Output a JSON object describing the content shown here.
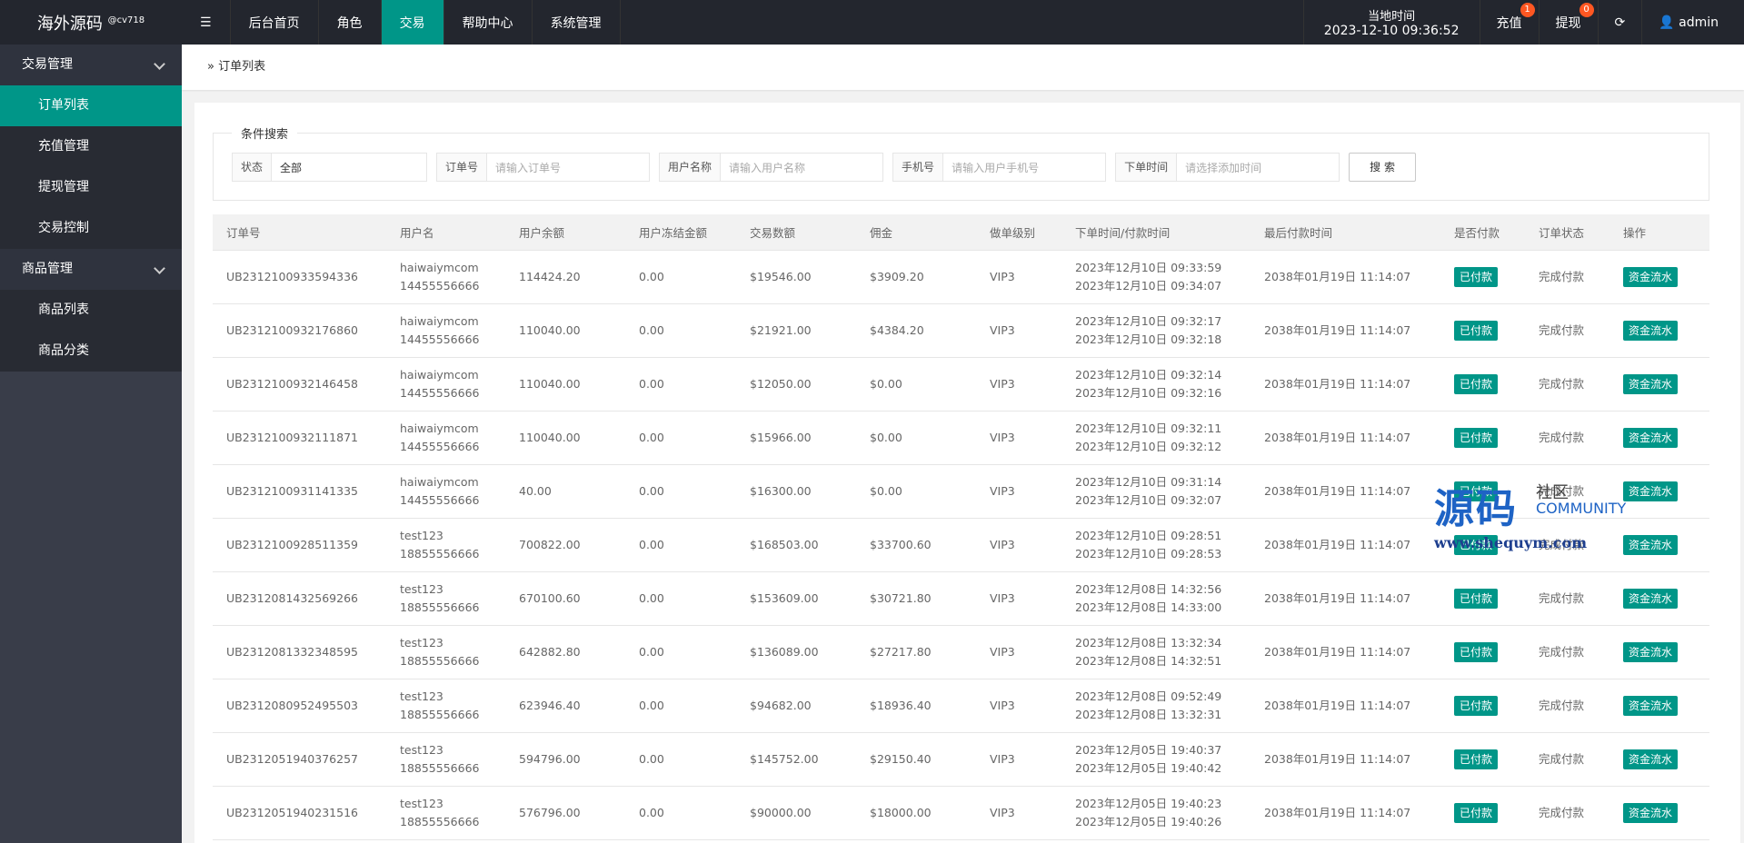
{
  "header": {
    "logo": "海外源码",
    "logo_tag": "@cv718",
    "nav": [
      "后台首页",
      "角色",
      "交易",
      "帮助中心",
      "系统管理"
    ],
    "time_label": "当地时间",
    "time": "2023-12-10 09:36:52",
    "recharge": "充值",
    "recharge_badge": "1",
    "withdraw": "提现",
    "withdraw_badge": "0",
    "user": "admin"
  },
  "sidebar": {
    "groups": [
      {
        "title": "交易管理",
        "items": [
          "订单列表",
          "充值管理",
          "提现管理",
          "交易控制"
        ]
      },
      {
        "title": "商品管理",
        "items": [
          "商品列表",
          "商品分类"
        ]
      }
    ]
  },
  "breadcrumb": "订单列表",
  "search": {
    "legend": "条件搜索",
    "fields": [
      {
        "label": "状态",
        "value": "全部"
      },
      {
        "label": "订单号",
        "placeholder": "请输入订单号"
      },
      {
        "label": "用户名称",
        "placeholder": "请输入用户名称"
      },
      {
        "label": "手机号",
        "placeholder": "请输入用户手机号"
      },
      {
        "label": "下单时间",
        "placeholder": "请选择添加时间"
      }
    ],
    "button": "搜 索"
  },
  "table": {
    "columns": [
      "订单号",
      "用户名",
      "用户余额",
      "用户冻结金额",
      "交易数额",
      "佣金",
      "做单级别",
      "下单时间/付款时间",
      "最后付款时间",
      "是否付款",
      "订单状态",
      "操作"
    ],
    "rows": [
      [
        "UB2312100933594336",
        "haiwaiymcom",
        "14455556666",
        "114424.20",
        "0.00",
        "$19546.00",
        "$3909.20",
        "VIP3",
        "2023年12月10日 09:33:59",
        "2023年12月10日 09:34:07",
        "2038年01月19日 11:14:07",
        "已付款",
        "完成付款",
        "资金流水"
      ],
      [
        "UB2312100932176860",
        "haiwaiymcom",
        "14455556666",
        "110040.00",
        "0.00",
        "$21921.00",
        "$4384.20",
        "VIP3",
        "2023年12月10日 09:32:17",
        "2023年12月10日 09:32:18",
        "2038年01月19日 11:14:07",
        "已付款",
        "完成付款",
        "资金流水"
      ],
      [
        "UB2312100932146458",
        "haiwaiymcom",
        "14455556666",
        "110040.00",
        "0.00",
        "$12050.00",
        "$0.00",
        "VIP3",
        "2023年12月10日 09:32:14",
        "2023年12月10日 09:32:16",
        "2038年01月19日 11:14:07",
        "已付款",
        "完成付款",
        "资金流水"
      ],
      [
        "UB2312100932111871",
        "haiwaiymcom",
        "14455556666",
        "110040.00",
        "0.00",
        "$15966.00",
        "$0.00",
        "VIP3",
        "2023年12月10日 09:32:11",
        "2023年12月10日 09:32:12",
        "2038年01月19日 11:14:07",
        "已付款",
        "完成付款",
        "资金流水"
      ],
      [
        "UB2312100931141335",
        "haiwaiymcom",
        "14455556666",
        "40.00",
        "0.00",
        "$16300.00",
        "$0.00",
        "VIP3",
        "2023年12月10日 09:31:14",
        "2023年12月10日 09:32:07",
        "2038年01月19日 11:14:07",
        "已付款",
        "完成付款",
        "资金流水"
      ],
      [
        "UB2312100928511359",
        "test123",
        "18855556666",
        "700822.00",
        "0.00",
        "$168503.00",
        "$33700.60",
        "VIP3",
        "2023年12月10日 09:28:51",
        "2023年12月10日 09:28:53",
        "2038年01月19日 11:14:07",
        "已付款",
        "完成付款",
        "资金流水"
      ],
      [
        "UB2312081432569266",
        "test123",
        "18855556666",
        "670100.60",
        "0.00",
        "$153609.00",
        "$30721.80",
        "VIP3",
        "2023年12月08日 14:32:56",
        "2023年12月08日 14:33:00",
        "2038年01月19日 11:14:07",
        "已付款",
        "完成付款",
        "资金流水"
      ],
      [
        "UB2312081332348595",
        "test123",
        "18855556666",
        "642882.80",
        "0.00",
        "$136089.00",
        "$27217.80",
        "VIP3",
        "2023年12月08日 13:32:34",
        "2023年12月08日 14:32:51",
        "2038年01月19日 11:14:07",
        "已付款",
        "完成付款",
        "资金流水"
      ],
      [
        "UB2312080952495503",
        "test123",
        "18855556666",
        "623946.40",
        "0.00",
        "$94682.00",
        "$18936.40",
        "VIP3",
        "2023年12月08日 09:52:49",
        "2023年12月08日 13:32:31",
        "2038年01月19日 11:14:07",
        "已付款",
        "完成付款",
        "资金流水"
      ],
      [
        "UB2312051940376257",
        "test123",
        "18855556666",
        "594796.00",
        "0.00",
        "$145752.00",
        "$29150.40",
        "VIP3",
        "2023年12月05日 19:40:37",
        "2023年12月05日 19:40:42",
        "2038年01月19日 11:14:07",
        "已付款",
        "完成付款",
        "资金流水"
      ],
      [
        "UB2312051940231516",
        "test123",
        "18855556666",
        "576796.00",
        "0.00",
        "$90000.00",
        "$18000.00",
        "VIP3",
        "2023年12月05日 19:40:23",
        "2023年12月05日 19:40:26",
        "2038年01月19日 11:14:07",
        "已付款",
        "完成付款",
        "资金流水"
      ]
    ]
  },
  "watermark": {
    "main": "源码",
    "sub": "社区",
    "en": "COMMUNITY",
    "url": "www.shequym.com"
  }
}
